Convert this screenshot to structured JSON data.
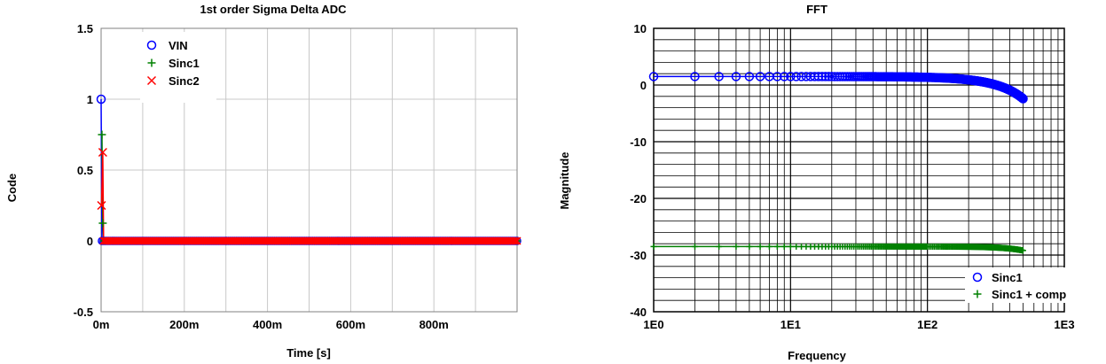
{
  "chart_data": [
    {
      "type": "line",
      "title": "1st order Sigma Delta ADC",
      "xlabel": "Time [s]",
      "ylabel": "Code",
      "xlim": [
        0,
        1
      ],
      "ylim": [
        -0.5,
        1.5
      ],
      "x_ticks": [
        {
          "value": 0,
          "label": "0m"
        },
        {
          "value": 0.2,
          "label": "200m"
        },
        {
          "value": 0.4,
          "label": "400m"
        },
        {
          "value": 0.6,
          "label": "600m"
        },
        {
          "value": 0.8,
          "label": "800m"
        }
      ],
      "y_ticks": [
        {
          "value": -0.5,
          "label": "-0.5"
        },
        {
          "value": 0,
          "label": "0"
        },
        {
          "value": 0.5,
          "label": "0.5"
        },
        {
          "value": 1,
          "label": "1"
        },
        {
          "value": 1.5,
          "label": "1.5"
        }
      ],
      "grid": true,
      "legend": "top-left",
      "series": [
        {
          "name": "VIN",
          "marker": "circle",
          "color": "#0000ff",
          "first_points": [
            [
              0,
              1
            ]
          ],
          "steady_value": 0,
          "steady_from": 0.002,
          "steady_to": 1.0,
          "count": 1000
        },
        {
          "name": "Sinc1",
          "marker": "plus",
          "color": "#008000",
          "first_points": [
            [
              0.002,
              0.75
            ],
            [
              0.004,
              0.125
            ]
          ],
          "steady_value": 0,
          "steady_from": 0.006,
          "steady_to": 1.0,
          "count": 1000
        },
        {
          "name": "Sinc2",
          "marker": "x",
          "color": "#ff0000",
          "first_points": [
            [
              0.004,
              0.625
            ],
            [
              0.001,
              0.25
            ]
          ],
          "steady_value": 0,
          "steady_from": 0.006,
          "steady_to": 1.0,
          "count": 1000
        }
      ]
    },
    {
      "type": "line",
      "title": "FFT",
      "xlabel": "Frequency",
      "ylabel": "Magnitude",
      "xscale": "log",
      "xlim": [
        1,
        1000
      ],
      "ylim": [
        -40,
        10
      ],
      "x_ticks": [
        {
          "value": 1,
          "label": "1E0"
        },
        {
          "value": 10,
          "label": "1E1"
        },
        {
          "value": 100,
          "label": "1E2"
        },
        {
          "value": 1000,
          "label": "1E3"
        }
      ],
      "y_ticks": [
        {
          "value": -40,
          "label": "-40"
        },
        {
          "value": -30,
          "label": "-30"
        },
        {
          "value": -20,
          "label": "-20"
        },
        {
          "value": -10,
          "label": "-10"
        },
        {
          "value": 0,
          "label": "0"
        },
        {
          "value": 10,
          "label": "10"
        }
      ],
      "grid": true,
      "legend": "bottom-right",
      "series": [
        {
          "name": "Sinc1",
          "marker": "circle",
          "color": "#0000ff",
          "level": 1.5,
          "rolloff": "sinc",
          "f_end": 500
        },
        {
          "name": "Sinc1 + comp",
          "marker": "plus",
          "color": "#008000",
          "level": -28.5,
          "end_value": -29.2,
          "f_end": 500
        }
      ]
    }
  ]
}
